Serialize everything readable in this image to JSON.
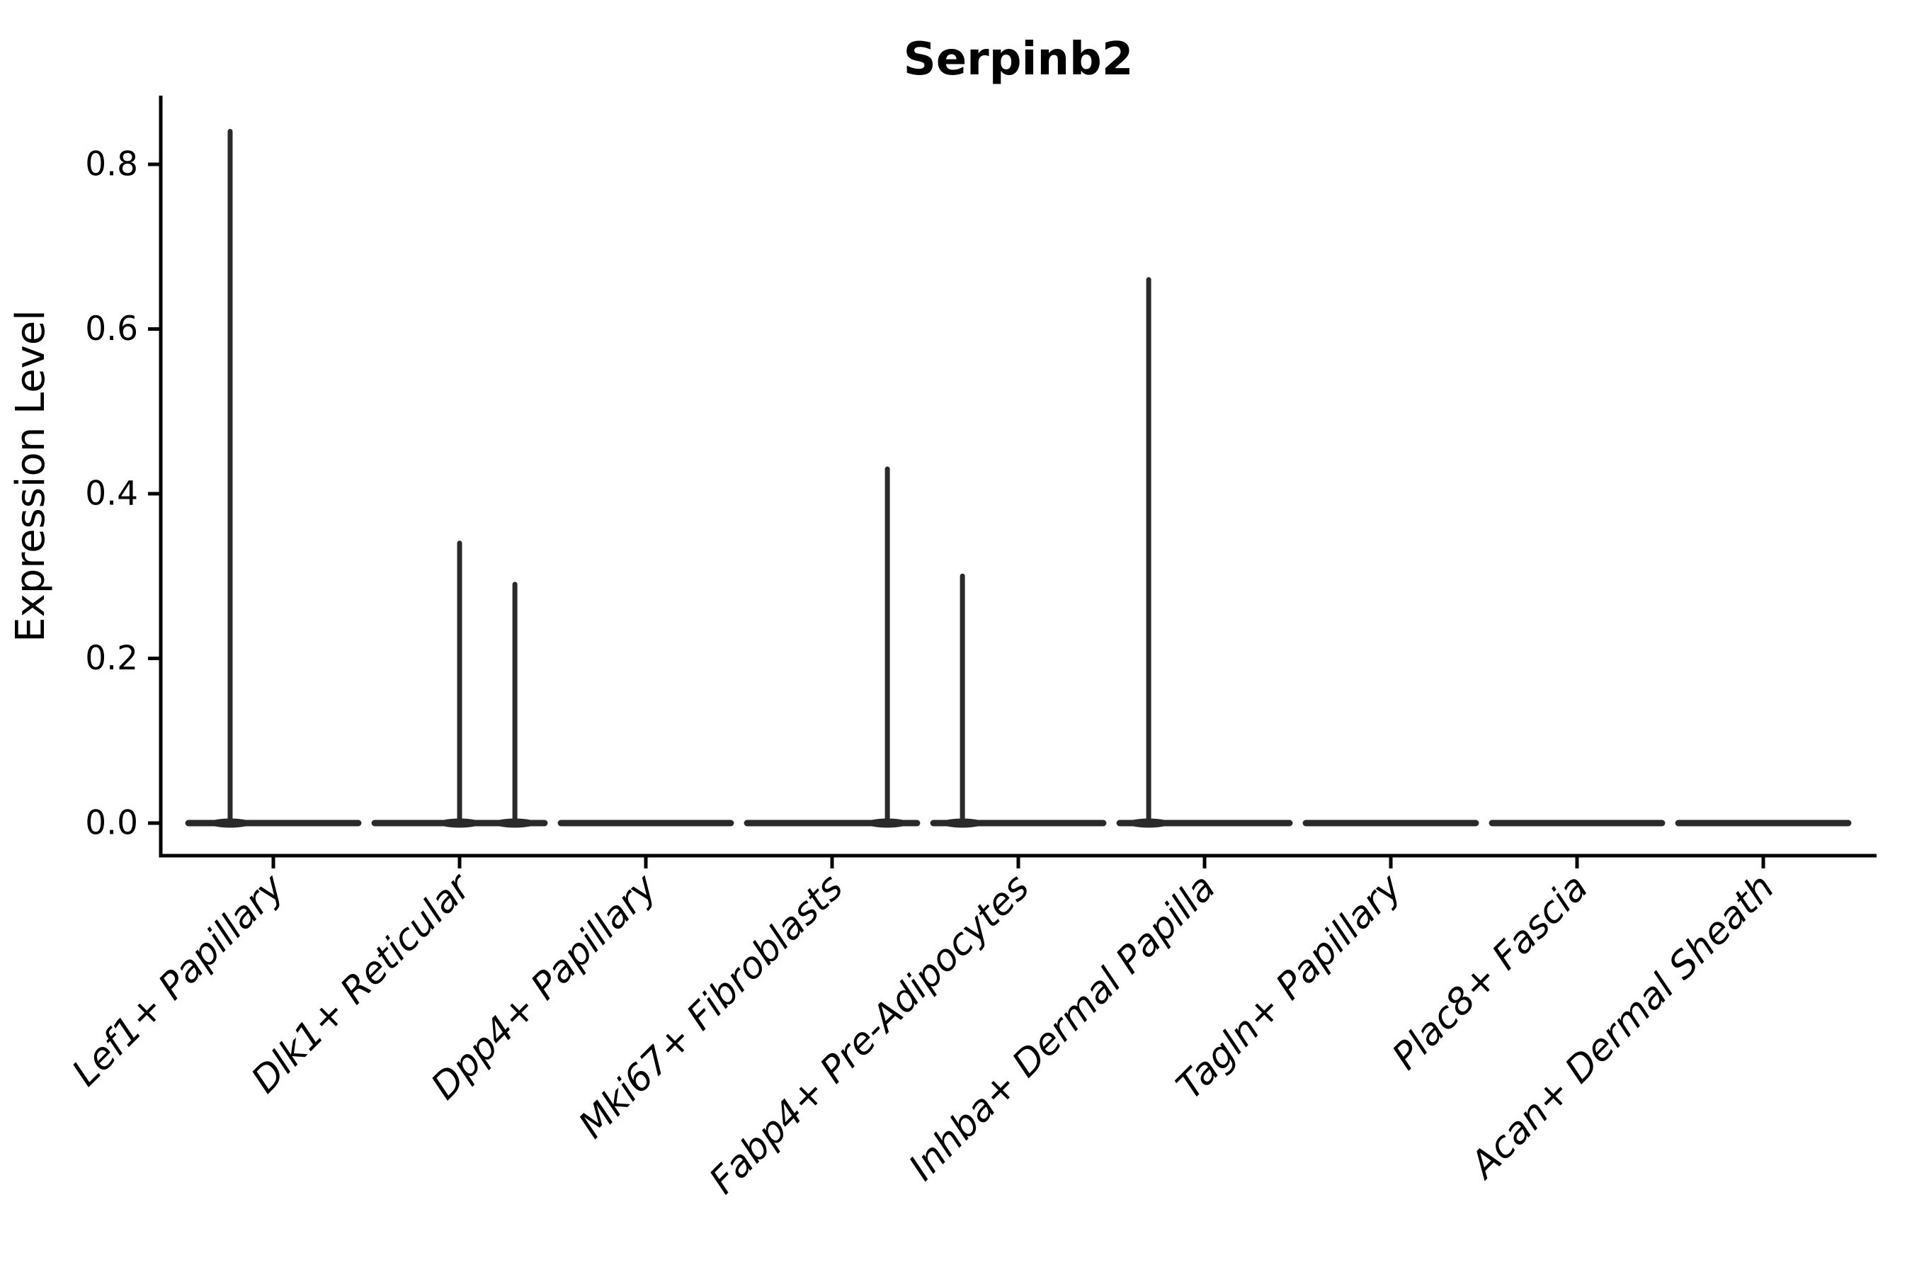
{
  "figure": {
    "title": "Serpinb2"
  },
  "chart_data": {
    "type": "violin",
    "title": "Serpinb2",
    "xlabel": "",
    "ylabel": "Expression Level",
    "ylim": [
      0,
      0.88
    ],
    "yticks": [
      "0.0",
      "0.2",
      "0.4",
      "0.6",
      "0.8"
    ],
    "grid": false,
    "legend": null,
    "baseline_value": 0.0,
    "categories": [
      "Lef1+ Papillary",
      "Dlk1+ Reticular",
      "Dpp4+ Papillary",
      "Mki67+ Fibroblasts",
      "Fabp4+ Pre-Adipocytes",
      "Inhba+ Dermal Papilla",
      "Tagln+ Papillary",
      "Plac8+ Fascia",
      "Acan+ Dermal Sheath"
    ],
    "violins": [
      {
        "category": "Lef1+ Papillary",
        "spikes": [
          {
            "value": 0.84,
            "x_offset_frac": -0.232
          }
        ]
      },
      {
        "category": "Dlk1+ Reticular",
        "spikes": [
          {
            "value": 0.34,
            "x_offset_frac": 0.0
          },
          {
            "value": 0.29,
            "x_offset_frac": 0.297
          }
        ]
      },
      {
        "category": "Dpp4+ Papillary",
        "spikes": []
      },
      {
        "category": "Mki67+ Fibroblasts",
        "spikes": [
          {
            "value": 0.43,
            "x_offset_frac": 0.297
          }
        ]
      },
      {
        "category": "Fabp4+ Pre-Adipocytes",
        "spikes": [
          {
            "value": 0.3,
            "x_offset_frac": -0.3
          }
        ]
      },
      {
        "category": "Inhba+ Dermal Papilla",
        "spikes": [
          {
            "value": 0.66,
            "x_offset_frac": -0.3
          }
        ]
      },
      {
        "category": "Tagln+ Papillary",
        "spikes": []
      },
      {
        "category": "Plac8+ Fascia",
        "spikes": []
      },
      {
        "category": "Acan+ Dermal Sheath",
        "spikes": []
      }
    ],
    "violin_halfwidth_frac": 0.456,
    "colors": {
      "violin_line": "#2a2a2a",
      "axis": "#000000",
      "text": "#000000",
      "background": "#ffffff"
    }
  }
}
